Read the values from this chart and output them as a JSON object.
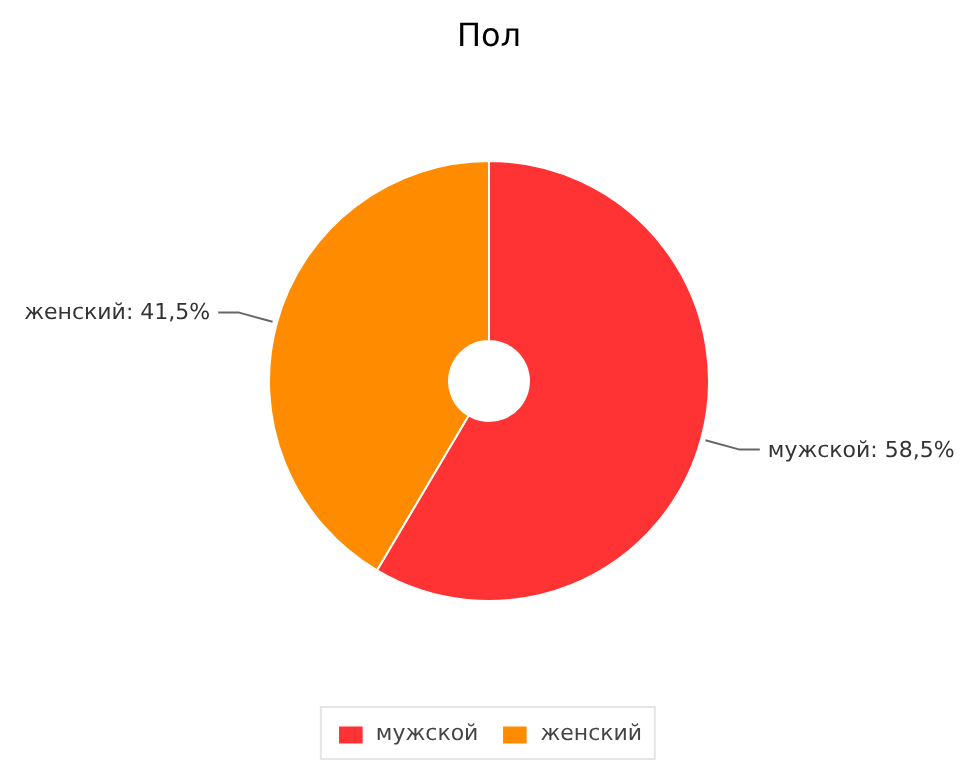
{
  "chart_data": {
    "type": "donut",
    "title": "Пол",
    "categories": [
      "мужской",
      "женский"
    ],
    "values": [
      58.5,
      41.5
    ],
    "colors": [
      "#ff3333",
      "#ff8c00"
    ],
    "value_labels": [
      "мужской: 58,5%",
      "женский: 41,5%"
    ],
    "legend": "bottom"
  }
}
